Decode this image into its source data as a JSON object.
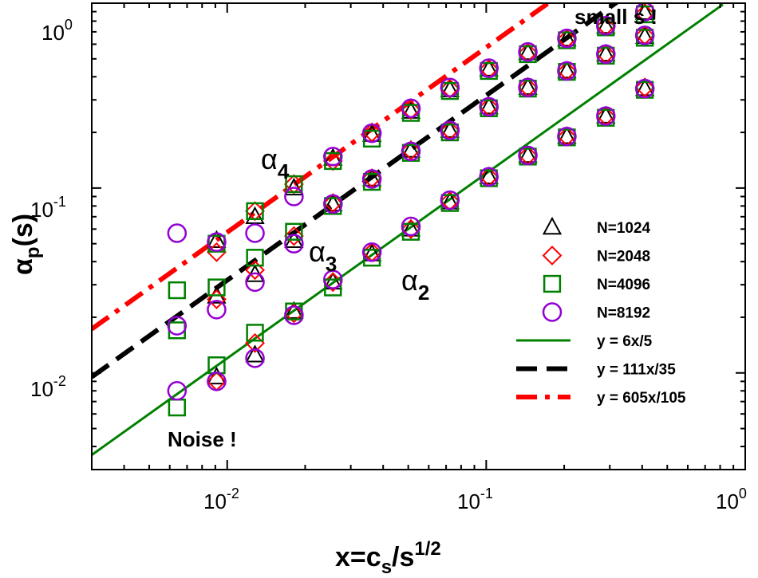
{
  "chart_data": {
    "type": "scatter",
    "scale": "log-log",
    "xlim": [
      0.003,
      1.0
    ],
    "ylim": [
      0.003,
      1.0
    ],
    "x_ticks": [
      {
        "value": 0.01,
        "base": "10",
        "exp": "-2"
      },
      {
        "value": 0.1,
        "base": "10",
        "exp": "-1"
      },
      {
        "value": 1,
        "base": "10",
        "exp": "0"
      }
    ],
    "y_ticks": [
      {
        "value": 0.01,
        "base": "10",
        "exp": "-2"
      },
      {
        "value": 0.1,
        "base": "10",
        "exp": "-1"
      },
      {
        "value": 1,
        "base": "10",
        "exp": "0"
      }
    ],
    "xlabel": {
      "main": "x=c",
      "sub": "s",
      "rest": "/s",
      "sup": "1/2"
    },
    "ylabel": {
      "main": "α",
      "sub": "p",
      "rest": "(s)"
    },
    "x_values": [
      0.0064,
      0.0091,
      0.0128,
      0.0181,
      0.0256,
      0.0362,
      0.0512,
      0.0724,
      0.1024,
      0.1448,
      0.2048,
      0.2896,
      0.4096
    ],
    "series": [
      {
        "name": "N=1024",
        "marker": "triangle",
        "color": "#000000",
        "alpha2": [
          null,
          0.0095,
          0.0125,
          0.0215,
          0.031,
          0.044,
          0.06,
          0.084,
          0.115,
          0.15,
          0.19,
          0.245,
          0.345
        ],
        "alpha3": [
          null,
          0.026,
          0.034,
          0.052,
          0.082,
          0.112,
          0.16,
          0.205,
          0.275,
          0.35,
          0.43,
          0.53,
          0.66
        ],
        "alpha4": [
          null,
          0.052,
          0.07,
          0.1,
          0.145,
          0.195,
          0.26,
          0.34,
          0.44,
          0.54,
          0.64,
          0.75,
          0.89
        ]
      },
      {
        "name": "N=2048",
        "marker": "diamond",
        "color": "#ff0000",
        "alpha2": [
          null,
          0.009,
          0.0145,
          0.021,
          0.031,
          0.045,
          0.06,
          0.085,
          0.115,
          0.15,
          0.19,
          0.245,
          0.35
        ],
        "alpha3": [
          null,
          0.025,
          0.036,
          0.055,
          0.083,
          0.113,
          0.16,
          0.205,
          0.275,
          0.35,
          0.43,
          0.53,
          0.67
        ],
        "alpha4": [
          null,
          0.045,
          0.075,
          0.105,
          0.14,
          0.2,
          0.265,
          0.345,
          0.44,
          0.54,
          0.64,
          0.75,
          0.88
        ]
      },
      {
        "name": "N=4096",
        "marker": "square",
        "color": "#008000",
        "alpha2": [
          0.0065,
          0.011,
          0.0165,
          0.0215,
          0.029,
          0.042,
          0.058,
          0.083,
          0.113,
          0.148,
          0.188,
          0.24,
          0.34
        ],
        "alpha3": [
          0.017,
          0.029,
          0.042,
          0.058,
          0.08,
          0.108,
          0.155,
          0.2,
          0.27,
          0.345,
          0.425,
          0.52,
          0.65
        ],
        "alpha4": [
          0.028,
          0.05,
          0.075,
          0.105,
          0.14,
          0.185,
          0.255,
          0.335,
          0.43,
          0.53,
          0.63,
          0.74,
          0.87
        ]
      },
      {
        "name": "N=8192",
        "marker": "circle",
        "color": "#9400d3",
        "alpha2": [
          0.008,
          0.009,
          0.012,
          0.0205,
          0.032,
          0.045,
          0.062,
          0.086,
          0.115,
          0.15,
          0.19,
          0.245,
          0.345
        ],
        "alpha3": [
          0.018,
          0.022,
          0.031,
          0.05,
          0.082,
          0.112,
          0.158,
          0.205,
          0.275,
          0.35,
          0.43,
          0.53,
          0.67
        ],
        "alpha4": [
          0.057,
          0.051,
          0.057,
          0.09,
          0.148,
          0.198,
          0.27,
          0.35,
          0.445,
          0.545,
          0.645,
          0.755,
          0.9
        ]
      }
    ],
    "fit_lines": [
      {
        "name": "y = 6x/5",
        "slope_num": 6,
        "slope_den": 5,
        "color": "#008000",
        "style": "solid"
      },
      {
        "name": "y = 111x/35",
        "slope_num": 111,
        "slope_den": 35,
        "color": "#000000",
        "style": "dashed"
      },
      {
        "name": "y = 605x/105",
        "slope_num": 605,
        "slope_den": 105,
        "color": "#ff0000",
        "style": "dashdot"
      }
    ],
    "annotations": {
      "alpha4": {
        "main": "α",
        "sub": "4"
      },
      "alpha3": {
        "main": "α",
        "sub": "3"
      },
      "alpha2": {
        "main": "α",
        "sub": "2"
      },
      "noise": "Noise !",
      "small_s": "small s !"
    },
    "legend_position": "right"
  }
}
